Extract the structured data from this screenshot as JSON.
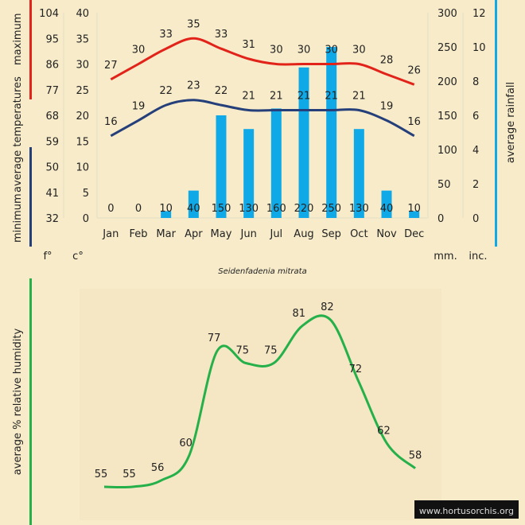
{
  "caption": "Seidenfadenia mitrata",
  "watermark": "www.hortusorchis.org",
  "colors": {
    "max": "#e2231a",
    "min": "#243f79",
    "rain": "#10a9e8",
    "humid": "#25b04a",
    "bg": "#f7ebc9",
    "axis": "#e3dfc8"
  },
  "units": {
    "f": "f°",
    "c": "c°",
    "mm": "mm.",
    "inc": "inc."
  },
  "labels": {
    "minimum": "minimum",
    "maximum": "maximum",
    "average_temps": "average temperatures",
    "average_rainfall": "average rainfall",
    "humidity": "average %  relative humidity"
  },
  "chart_data": [
    {
      "type": "line+bar",
      "categories": [
        "Jan",
        "Feb",
        "Mar",
        "Apr",
        "May",
        "Jun",
        "Jul",
        "Aug",
        "Sep",
        "Oct",
        "Nov",
        "Dec"
      ],
      "series": [
        {
          "name": "maximum",
          "unit": "c°",
          "values": [
            27,
            30,
            33,
            35,
            33,
            31,
            30,
            30,
            30,
            30,
            28,
            26
          ]
        },
        {
          "name": "minimum",
          "unit": "c°",
          "values": [
            16,
            19,
            22,
            23,
            22,
            21,
            21,
            21,
            21,
            21,
            19,
            16
          ]
        },
        {
          "name": "average rainfall",
          "unit": "mm.",
          "values": [
            0,
            0,
            10,
            40,
            150,
            130,
            160,
            220,
            250,
            130,
            40,
            10
          ]
        }
      ],
      "axes": {
        "fahrenheit": {
          "ticks": [
            "104",
            "95",
            "86",
            "77",
            "68",
            "59",
            "50",
            "41",
            "32"
          ]
        },
        "celsius": {
          "ticks": [
            "40",
            "35",
            "30",
            "25",
            "20",
            "15",
            "10",
            "5",
            "0"
          ],
          "ylim": [
            0,
            40
          ]
        },
        "mm": {
          "ticks": [
            "300",
            "250",
            "200",
            "150",
            "100",
            "50",
            "0"
          ],
          "ylim": [
            0,
            300
          ]
        },
        "inches": {
          "ticks": [
            "12",
            "10",
            "8",
            "6",
            "4",
            "2",
            "0"
          ],
          "ylim": [
            0,
            12
          ]
        }
      },
      "grid": false
    },
    {
      "type": "line",
      "series": [
        {
          "name": "average % relative humidity",
          "values": [
            55,
            55,
            56,
            60,
            77,
            75,
            75,
            81,
            82,
            72,
            62,
            58
          ]
        }
      ],
      "ylim": [
        50,
        85
      ]
    }
  ]
}
